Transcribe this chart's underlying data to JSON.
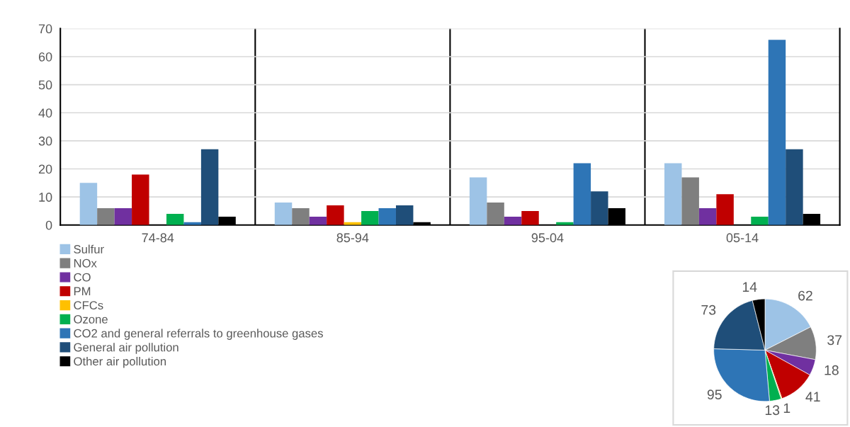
{
  "chart_data": [
    {
      "type": "bar",
      "categories": [
        "74-84",
        "85-94",
        "95-04",
        "05-14"
      ],
      "series": [
        {
          "name": "Sulfur",
          "color": "#9dc3e6",
          "values": [
            15,
            8,
            17,
            22
          ]
        },
        {
          "name": "NOx",
          "color": "#7f7f7f",
          "values": [
            6,
            6,
            8,
            17
          ]
        },
        {
          "name": "CO",
          "color": "#7030a0",
          "values": [
            6,
            3,
            3,
            6
          ]
        },
        {
          "name": "PM",
          "color": "#c00000",
          "values": [
            18,
            7,
            5,
            11
          ]
        },
        {
          "name": "CFCs",
          "color": "#ffc000",
          "values": [
            0,
            1,
            0,
            0
          ]
        },
        {
          "name": "Ozone",
          "color": "#00b050",
          "values": [
            4,
            5,
            1,
            3
          ]
        },
        {
          "name": "CO2 and general referrals to greenhouse gases",
          "color": "#2e75b6",
          "values": [
            1,
            6,
            22,
            66
          ]
        },
        {
          "name": "General air pollution",
          "color": "#1f4e79",
          "values": [
            27,
            7,
            12,
            27
          ]
        },
        {
          "name": "Other air pollution",
          "color": "#000000",
          "values": [
            3,
            1,
            6,
            4
          ]
        }
      ],
      "ylim": [
        0,
        70
      ],
      "yticks": [
        0,
        10,
        20,
        30,
        40,
        50,
        60,
        70
      ],
      "grid": "y",
      "legend": "bottom left"
    },
    {
      "type": "pie",
      "categories": [
        null,
        null,
        null,
        null,
        null,
        null,
        null,
        null,
        null
      ],
      "values": [
        62,
        37,
        18,
        41,
        1,
        13,
        95,
        73,
        14
      ],
      "colors": [
        "#9dc3e6",
        "#7f7f7f",
        "#7030a0",
        "#c00000",
        "#ffc000",
        "#00b050",
        "#2e75b6",
        "#1f4e79",
        "#000000"
      ],
      "data_labels": true
    }
  ]
}
